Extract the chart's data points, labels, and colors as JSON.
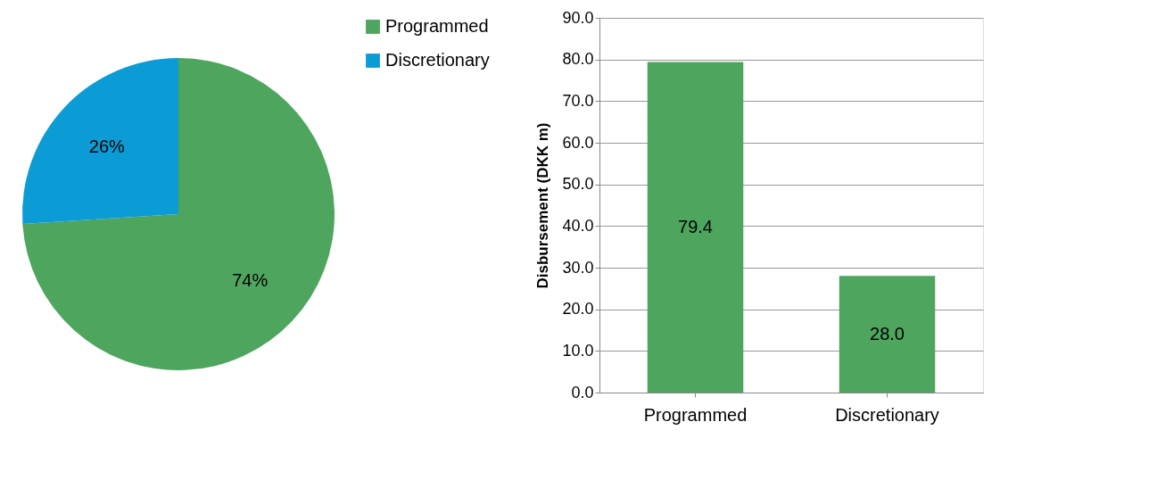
{
  "chart_data": [
    {
      "type": "pie",
      "categories": [
        "Programmed",
        "Discretionary"
      ],
      "values": [
        74,
        26
      ],
      "colors": [
        "#4ea55e",
        "#0b9bd5"
      ],
      "value_labels": [
        "74%",
        "26%"
      ],
      "legend": "right"
    },
    {
      "type": "bar",
      "ylabel": "Disbursement (DKK m)",
      "categories": [
        "Programmed",
        "Discretionary"
      ],
      "values": [
        79.4,
        28.0
      ],
      "color": "#4ea55e",
      "value_labels": [
        "79.4",
        "28.0"
      ],
      "ylim": [
        0,
        90
      ],
      "yticks": [
        {
          "value": 0,
          "label": "0.0"
        },
        {
          "value": 10,
          "label": "10.0"
        },
        {
          "value": 20,
          "label": "20.0"
        },
        {
          "value": 30,
          "label": "30.0"
        },
        {
          "value": 40,
          "label": "40.0"
        },
        {
          "value": 50,
          "label": "50.0"
        },
        {
          "value": 60,
          "label": "60.0"
        },
        {
          "value": 70,
          "label": "70.0"
        },
        {
          "value": 80,
          "label": "80.0"
        },
        {
          "value": 90,
          "label": "90.0"
        }
      ],
      "grid": "y"
    }
  ]
}
